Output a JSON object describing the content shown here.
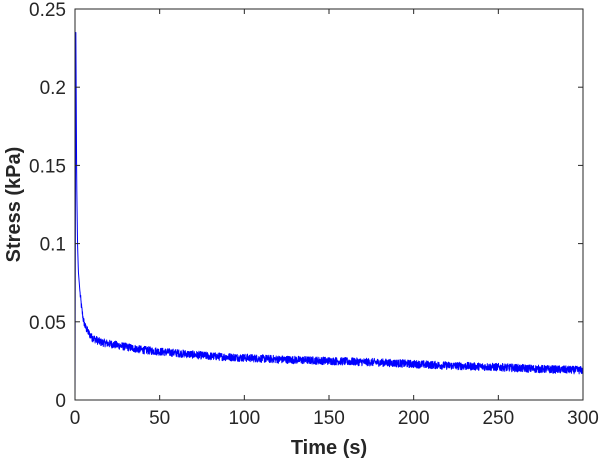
{
  "chart_data": {
    "type": "line",
    "title": "",
    "xlabel": "Time (s)",
    "ylabel": "Stress (kPa)",
    "xlim": [
      0,
      300
    ],
    "ylim": [
      0,
      0.25
    ],
    "xticks": [
      0,
      50,
      100,
      150,
      200,
      250,
      300
    ],
    "xtick_labels": [
      "0",
      "50",
      "100",
      "150",
      "200",
      "250",
      "300"
    ],
    "yticks": [
      0,
      0.05,
      0.1,
      0.15,
      0.2,
      0.25
    ],
    "ytick_labels": [
      "0",
      "0.05",
      "0.1",
      "0.15",
      "0.2",
      "0.25"
    ],
    "grid": false,
    "legend": "none",
    "series_color": "#0000ff",
    "series": [
      {
        "x": [
          0,
          0.5,
          1,
          1.5,
          2,
          3,
          4,
          5,
          6,
          8,
          10,
          15,
          20,
          30,
          40,
          50,
          60,
          80,
          100,
          120,
          150,
          180,
          200,
          220,
          250,
          270,
          300
        ],
        "y": [
          0,
          0.235,
          0.14,
          0.1,
          0.082,
          0.068,
          0.058,
          0.051,
          0.047,
          0.043,
          0.04,
          0.037,
          0.036,
          0.034,
          0.032,
          0.031,
          0.03,
          0.028,
          0.027,
          0.026,
          0.025,
          0.024,
          0.023,
          0.022,
          0.021,
          0.02,
          0.019
        ]
      }
    ],
    "noise_amplitude": 0.0025
  }
}
